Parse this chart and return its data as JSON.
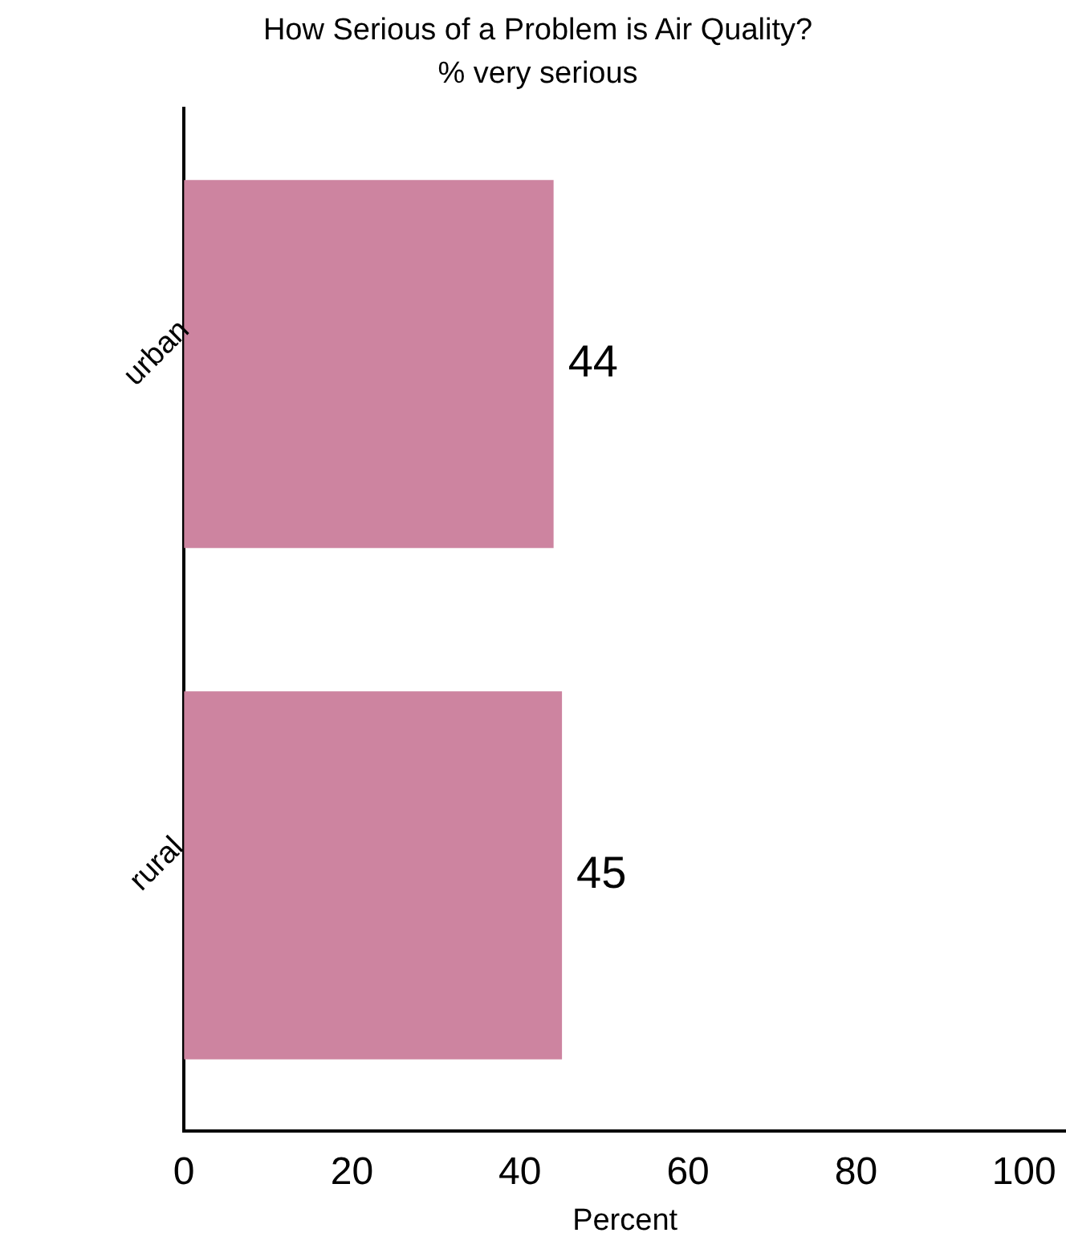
{
  "chart_data": {
    "type": "bar",
    "orientation": "horizontal",
    "title": "How Serious of a Problem is Air Quality?",
    "subtitle": "% very serious",
    "xlabel": "Percent",
    "categories": [
      "urban",
      "rural"
    ],
    "values": [
      44,
      45
    ],
    "color": "#cd84a0",
    "xlim": [
      0,
      105
    ],
    "xticks": [
      0,
      20,
      40,
      60,
      80,
      100
    ],
    "grid": false,
    "legend": false,
    "data_labels": true
  }
}
